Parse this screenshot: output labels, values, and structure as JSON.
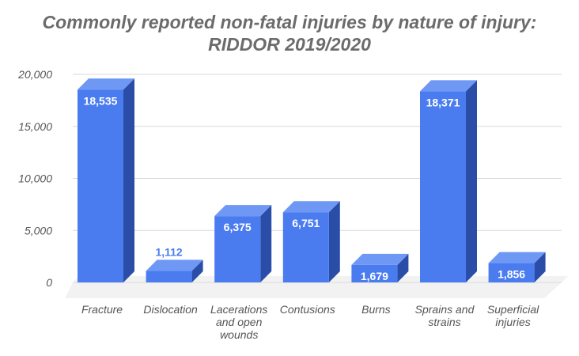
{
  "chart_data": {
    "type": "bar",
    "title_lines": [
      "Commonly reported non-fatal injuries by nature of injury:",
      "RIDDOR 2019/2020"
    ],
    "categories": [
      "Fracture",
      "Dislocation",
      "Lacerations and open wounds",
      "Contusions",
      "Burns",
      "Sprains and strains",
      "Superficial injuries"
    ],
    "values": [
      18535,
      1112,
      6375,
      6751,
      1679,
      18371,
      1856
    ],
    "data_labels": [
      "18,535",
      "1,112",
      "6,375",
      "6,751",
      "1,679",
      "18,371",
      "1,856"
    ],
    "y_ticks": [
      0,
      5000,
      10000,
      15000,
      20000
    ],
    "y_tick_labels": [
      "0",
      "5,000",
      "10,000",
      "15,000",
      "20,000"
    ],
    "ylim": [
      0,
      20000
    ],
    "grid": true,
    "legend": "none",
    "style": "3d-column",
    "colors": {
      "bar_front": "#4a7cf0",
      "bar_side": "#2a4ea8",
      "bar_top": "#6f98f5",
      "grid": "#d9d9d9",
      "floor": "#eaeaea",
      "label_inside": "#ffffff",
      "label_outside": "#4a7cf0"
    }
  }
}
